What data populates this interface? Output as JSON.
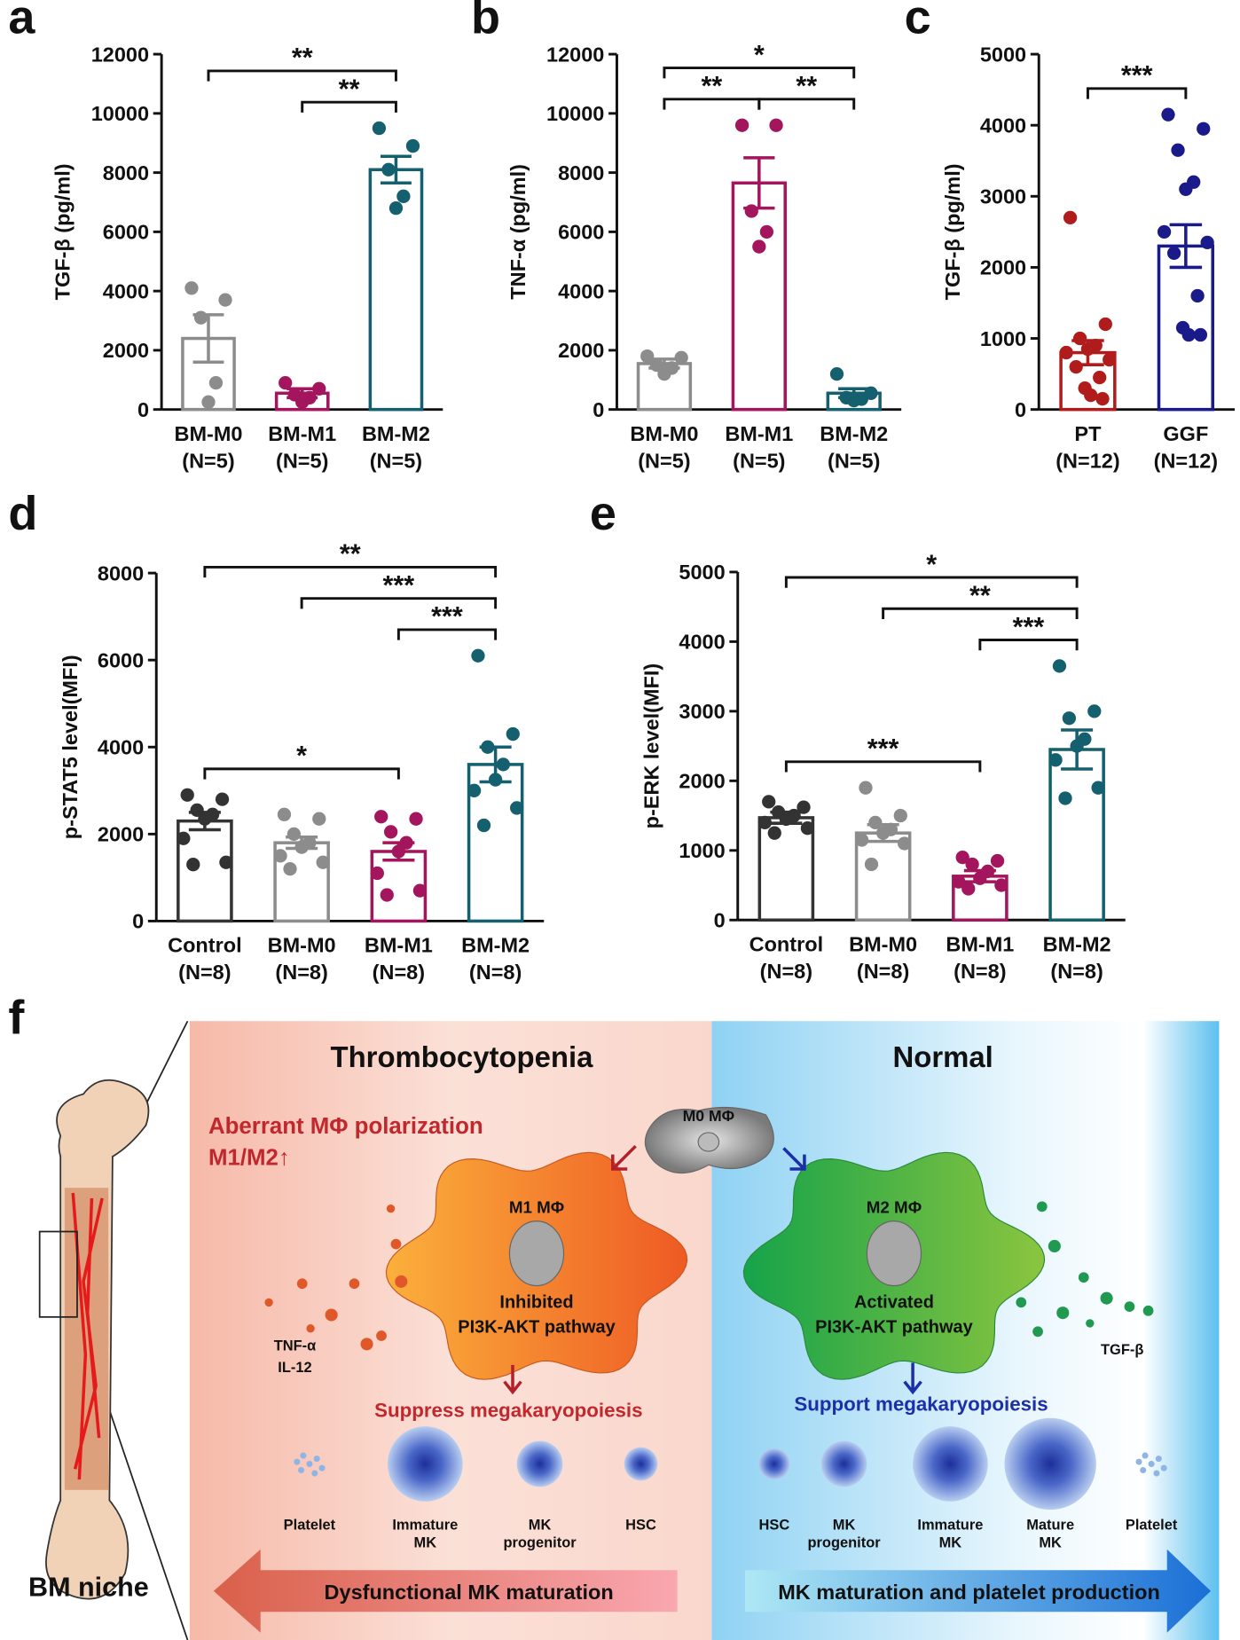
{
  "panel_labels": [
    "a",
    "b",
    "c",
    "d",
    "e",
    "f"
  ],
  "chart_data": [
    {
      "type": "bar",
      "ylabel": "TGF-β (pg/ml)",
      "categories": [
        "BM-M0",
        "BM-M1",
        "BM-M2"
      ],
      "sample_sizes": [
        "(N=5)",
        "(N=5)",
        "(N=5)"
      ],
      "colors": [
        "#8c8c8c",
        "#a3155c",
        "#15606e"
      ],
      "values": [
        2400,
        550,
        8100
      ],
      "errors": [
        800,
        150,
        450
      ],
      "points": [
        [
          4100,
          3700,
          3100,
          900,
          250
        ],
        [
          900,
          700,
          500,
          400,
          250
        ],
        [
          9500,
          8900,
          8100,
          7200,
          6800
        ]
      ],
      "ylim": [
        0,
        12000
      ],
      "yticks": [
        0,
        2000,
        4000,
        6000,
        8000,
        10000,
        12000
      ],
      "annotations": [
        {
          "from": 0,
          "to": 2,
          "label": "**"
        },
        {
          "from": 1,
          "to": 2,
          "label": "**"
        }
      ]
    },
    {
      "type": "bar",
      "ylabel": "TNF-α (pg/ml)",
      "categories": [
        "BM-M0",
        "BM-M1",
        "BM-M2"
      ],
      "sample_sizes": [
        "(N=5)",
        "(N=5)",
        "(N=5)"
      ],
      "colors": [
        "#8c8c8c",
        "#a3155c",
        "#15606e"
      ],
      "values": [
        1550,
        7650,
        550
      ],
      "errors": [
        150,
        850,
        150
      ],
      "points": [
        [
          1800,
          1750,
          1500,
          1400,
          1200
        ],
        [
          9600,
          9600,
          6700,
          6000,
          5500
        ],
        [
          1200,
          550,
          400,
          350,
          300
        ]
      ],
      "ylim": [
        0,
        12000
      ],
      "yticks": [
        0,
        2000,
        4000,
        6000,
        8000,
        10000,
        12000
      ],
      "annotations": [
        {
          "from": 0,
          "to": 2,
          "label": "*"
        },
        {
          "from": 0,
          "to": 1,
          "label": "**"
        },
        {
          "from": 1,
          "to": 2,
          "label": "**"
        }
      ]
    },
    {
      "type": "bar",
      "ylabel": "TGF-β (pg/ml)",
      "categories": [
        "PT",
        "GGF"
      ],
      "sample_sizes": [
        "(N=12)",
        "(N=12)"
      ],
      "colors": [
        "#b01c1c",
        "#1a1a8a"
      ],
      "values": [
        800,
        2300
      ],
      "errors": [
        170,
        300
      ],
      "points": [
        [
          2700,
          1200,
          1000,
          900,
          850,
          800,
          700,
          600,
          450,
          300,
          200,
          150
        ],
        [
          4150,
          3950,
          3650,
          3200,
          3100,
          2500,
          2350,
          2200,
          1600,
          1150,
          1050,
          1050
        ]
      ],
      "ylim": [
        0,
        5000
      ],
      "yticks": [
        0,
        1000,
        2000,
        3000,
        4000,
        5000
      ],
      "annotations": [
        {
          "from": 0,
          "to": 1,
          "label": "***"
        }
      ]
    },
    {
      "type": "bar",
      "ylabel": "p-STAT5 level(MFI)",
      "categories": [
        "Control",
        "BM-M0",
        "BM-M1",
        "BM-M2"
      ],
      "sample_sizes": [
        "(N=8)",
        "(N=8)",
        "(N=8)",
        "(N=8)"
      ],
      "colors": [
        "#333333",
        "#8c8c8c",
        "#a3155c",
        "#15606e"
      ],
      "values": [
        2300,
        1800,
        1600,
        3600
      ],
      "errors": [
        200,
        130,
        200,
        400
      ],
      "points": [
        [
          2900,
          2800,
          2550,
          2450,
          2350,
          1900,
          1350,
          1300
        ],
        [
          2450,
          2350,
          2000,
          1800,
          1700,
          1500,
          1350,
          1200
        ],
        [
          2400,
          2350,
          2050,
          1800,
          1600,
          1100,
          700,
          600
        ],
        [
          6100,
          4300,
          4000,
          3600,
          3250,
          3000,
          2600,
          2200
        ]
      ],
      "ylim": [
        0,
        8000
      ],
      "yticks": [
        0,
        2000,
        4000,
        6000,
        8000
      ],
      "annotations": [
        {
          "from": 0,
          "to": 3,
          "label": "**"
        },
        {
          "from": 1,
          "to": 3,
          "label": "***"
        },
        {
          "from": 2,
          "to": 3,
          "label": "***"
        },
        {
          "from": 0,
          "to": 2,
          "label": "*"
        }
      ]
    },
    {
      "type": "bar",
      "ylabel": "p-ERK level(MFI)",
      "categories": [
        "Control",
        "BM-M0",
        "BM-M1",
        "BM-M2"
      ],
      "sample_sizes": [
        "(N=8)",
        "(N=8)",
        "(N=8)",
        "(N=8)"
      ],
      "colors": [
        "#333333",
        "#8c8c8c",
        "#a3155c",
        "#15606e"
      ],
      "values": [
        1470,
        1250,
        630,
        2450
      ],
      "errors": [
        80,
        120,
        80,
        280
      ],
      "points": [
        [
          1700,
          1620,
          1550,
          1500,
          1450,
          1400,
          1320,
          1250
        ],
        [
          1900,
          1500,
          1400,
          1300,
          1250,
          1150,
          1100,
          800
        ],
        [
          900,
          850,
          800,
          700,
          600,
          550,
          500,
          450
        ],
        [
          3650,
          3000,
          2900,
          2600,
          2500,
          2300,
          1900,
          1750
        ]
      ],
      "ylim": [
        0,
        5000
      ],
      "yticks": [
        0,
        1000,
        2000,
        3000,
        4000,
        5000
      ],
      "annotations": [
        {
          "from": 0,
          "to": 3,
          "label": "*"
        },
        {
          "from": 1,
          "to": 3,
          "label": "**"
        },
        {
          "from": 2,
          "to": 3,
          "label": "***"
        },
        {
          "from": 0,
          "to": 2,
          "label": "***"
        }
      ]
    }
  ],
  "diagram": {
    "left_title": "Thrombocytopenia",
    "right_title": "Normal",
    "aberrant": "Aberrant MΦ polarization",
    "ratio": "M1/M2↑",
    "m0": "M0 MΦ",
    "m1": "M1 MΦ",
    "m1_pathway": [
      "Inhibited",
      "PI3K-AKT pathway"
    ],
    "m2": "M2 MΦ",
    "m2_pathway": [
      "Activated",
      "PI3K-AKT pathway"
    ],
    "m1_cytokines": [
      "TNF-α",
      "IL-12"
    ],
    "m2_cytokine": "TGF-β",
    "suppress": "Suppress megakaryopoiesis",
    "support": "Support megakaryopoiesis",
    "left_cells": [
      [
        "Platelet"
      ],
      [
        "Immature",
        "MK"
      ],
      [
        "MK",
        "progenitor"
      ],
      [
        "HSC"
      ]
    ],
    "right_cells": [
      [
        "HSC"
      ],
      [
        "MK",
        "progenitor"
      ],
      [
        "Immature",
        "MK"
      ],
      [
        "Mature",
        "MK"
      ],
      [
        "Platelet"
      ]
    ],
    "left_arrow": "Dysfunctional MK maturation",
    "right_arrow": "MK maturation and platelet production",
    "bone_label": "BM niche"
  }
}
